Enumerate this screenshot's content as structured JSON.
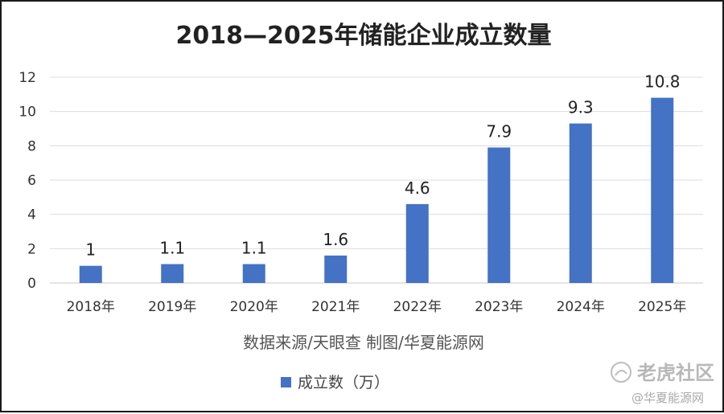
{
  "chart_data": {
    "type": "bar",
    "title": "2018—2025年储能企业成立数量",
    "categories": [
      "2018年",
      "2019年",
      "2020年",
      "2021年",
      "2022年",
      "2023年",
      "2024年",
      "2025年"
    ],
    "series": [
      {
        "name": "成立数（万）",
        "values": [
          1,
          1.1,
          1.1,
          1.6,
          4.6,
          7.9,
          9.3,
          10.8
        ],
        "color": "#4472c4"
      }
    ],
    "data_labels": [
      "1",
      "1.1",
      "1.1",
      "1.6",
      "4.6",
      "7.9",
      "9.3",
      "10.8"
    ],
    "ylim": [
      0,
      12
    ],
    "yticks": [
      0,
      2,
      4,
      6,
      8,
      10,
      12
    ],
    "grid": true,
    "legend_position": "bottom",
    "source_note": "数据来源/天眼查  制图/华夏能源网"
  },
  "watermark": {
    "brand": "老虎社区",
    "handle": "@华夏能源网"
  }
}
